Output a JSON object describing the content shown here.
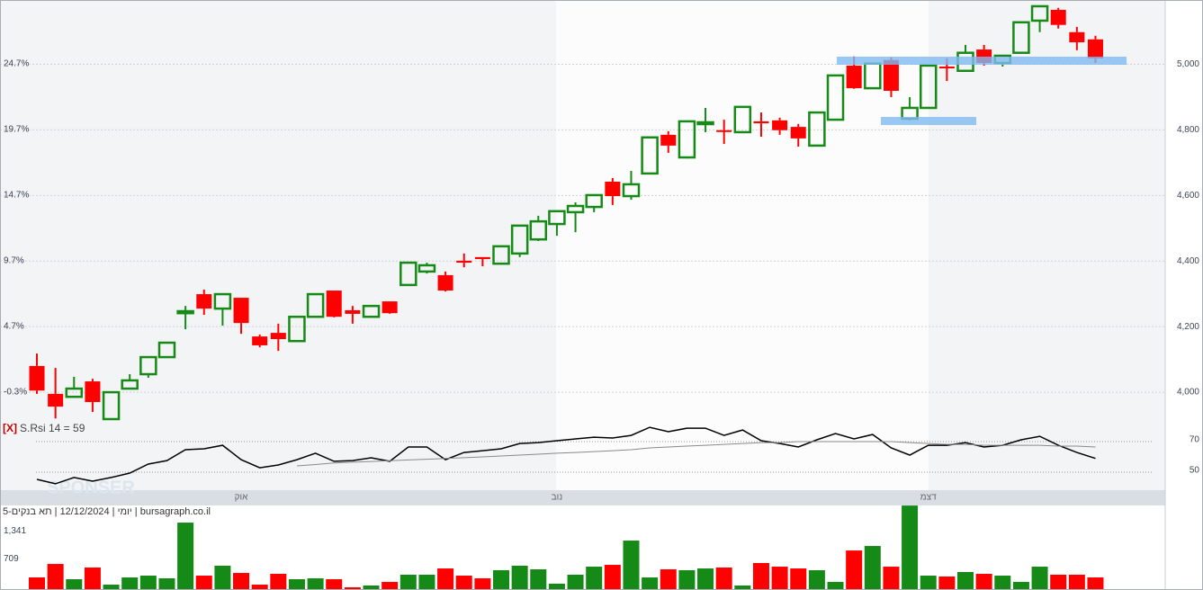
{
  "chart_data": [
    {
      "type": "candlestick",
      "categories": [
        null,
        null,
        null,
        null,
        null,
        null,
        null,
        null,
        null,
        null,
        null,
        "אוק",
        null,
        null,
        null,
        null,
        null,
        null,
        null,
        null,
        null,
        null,
        null,
        null,
        null,
        null,
        null,
        null,
        "נוב",
        null,
        null,
        null,
        null,
        null,
        null,
        null,
        null,
        null,
        null,
        null,
        null,
        null,
        null,
        null,
        null,
        null,
        null,
        null,
        "דצמ",
        null,
        null,
        null,
        null,
        null,
        null,
        null,
        null,
        null
      ],
      "open": [
        4080,
        3995,
        3986,
        4033,
        3918,
        4011,
        4055,
        4107,
        4241,
        4299,
        4255,
        4288,
        4170,
        4181,
        4156,
        4230,
        4310,
        4250,
        4230,
        4277,
        4327,
        4368,
        4357,
        4401,
        4412,
        4392,
        4423,
        4466,
        4513,
        4549,
        4565,
        4642,
        4598,
        4667,
        4785,
        4716,
        4818,
        4799,
        4793,
        4826,
        4829,
        4809,
        4752,
        4831,
        4996,
        4927,
        5013,
        4834,
        4867,
        4993,
        4980,
        5045,
        5004,
        5035,
        5133,
        5166,
        5098,
        5076
      ],
      "high": [
        4118,
        4074,
        4047,
        4041,
        4000,
        4055,
        4107,
        4151,
        4263,
        4313,
        4299,
        4288,
        4176,
        4209,
        4230,
        4299,
        4310,
        4263,
        4263,
        4277,
        4395,
        4395,
        4368,
        4423,
        4412,
        4445,
        4508,
        4538,
        4552,
        4579,
        4601,
        4653,
        4675,
        4777,
        4796,
        4826,
        4867,
        4831,
        4870,
        4853,
        4837,
        4818,
        4853,
        4966,
        5024,
        5002,
        5021,
        4900,
        4996,
        5018,
        5059,
        5059,
        5026,
        5128,
        5177,
        5172,
        5114,
        5087
      ],
      "low": [
        3995,
        3920,
        3984,
        3940,
        3918,
        4011,
        4044,
        4105,
        4192,
        4236,
        4203,
        4178,
        4137,
        4126,
        4153,
        4230,
        4228,
        4209,
        4228,
        4239,
        4324,
        4362,
        4307,
        4381,
        4384,
        4389,
        4412,
        4461,
        4477,
        4488,
        4549,
        4571,
        4587,
        4664,
        4730,
        4713,
        4793,
        4757,
        4790,
        4779,
        4785,
        4749,
        4749,
        4829,
        4925,
        4925,
        4900,
        4829,
        4864,
        4949,
        4977,
        4996,
        4993,
        5032,
        5098,
        5109,
        5043,
        5004
      ],
      "close": [
        4005,
        3956,
        4011,
        3970,
        4000,
        4036,
        4107,
        4151,
        4247,
        4255,
        4299,
        4211,
        4143,
        4162,
        4230,
        4299,
        4230,
        4239,
        4263,
        4241,
        4395,
        4387,
        4310,
        4395,
        4406,
        4445,
        4508,
        4521,
        4552,
        4568,
        4601,
        4598,
        4634,
        4777,
        4752,
        4826,
        4823,
        4796,
        4870,
        4820,
        4799,
        4774,
        4853,
        4966,
        4927,
        5002,
        4919,
        4867,
        4996,
        4988,
        5035,
        5004,
        5026,
        5128,
        5177,
        5120,
        5067,
        5018
      ],
      "up_color": "#168a16",
      "down_color": "#ff0000",
      "ylim": [
        3907,
        5196
      ],
      "yticks": [
        {
          "value": 4000,
          "label": "4,000"
        },
        {
          "value": 4200,
          "label": "4,200"
        },
        {
          "value": 4400,
          "label": "4,400"
        },
        {
          "value": 4600,
          "label": "4,600"
        },
        {
          "value": 4800,
          "label": "4,800"
        },
        {
          "value": 5000,
          "label": "5,000"
        }
      ],
      "y2lim": [
        -2.63,
        29.57
      ],
      "y2ticks": [
        {
          "value": -0.3,
          "label": "-0.3%"
        },
        {
          "value": 4.7,
          "label": "4.7%"
        },
        {
          "value": 9.7,
          "label": "9.7%"
        },
        {
          "value": 14.7,
          "label": "14.7%"
        },
        {
          "value": 19.7,
          "label": "19.7%"
        },
        {
          "value": 24.7,
          "label": "24.7%"
        }
      ],
      "grid": true
    },
    {
      "type": "line",
      "title": "S.Rsi 14 = 59",
      "close_button": "[X]",
      "series": [
        {
          "color": "#000000",
          "values": [
            45.3,
            42.4,
            46.5,
            44.1,
            46.5,
            49.4,
            55.3,
            57.6,
            64.7,
            65.3,
            67.6,
            58.2,
            52.9,
            54.7,
            58.2,
            62.4,
            57.1,
            57.6,
            59.4,
            57.1,
            66.5,
            66.5,
            58.2,
            62.9,
            64.1,
            65.3,
            68.8,
            69.4,
            70.6,
            71.8,
            72.9,
            72.4,
            74.1,
            79.4,
            76.5,
            78.8,
            78.8,
            74.1,
            77.6,
            70.6,
            68.8,
            66.5,
            71.2,
            75.3,
            71.8,
            74.7,
            65.9,
            61.2,
            67.6,
            67.6,
            69.4,
            66.5,
            67.6,
            71.2,
            73.5,
            67.6,
            62.9,
            59
          ]
        },
        {
          "color": "#8a8a8a",
          "values": [
            null,
            null,
            null,
            null,
            null,
            null,
            null,
            null,
            null,
            null,
            null,
            null,
            null,
            null,
            54.1,
            55,
            56,
            56.5,
            57,
            57.5,
            58,
            58.5,
            59,
            59.5,
            60,
            60.6,
            61.2,
            61.8,
            62.4,
            62.9,
            63.5,
            64.1,
            64.7,
            65.9,
            66.5,
            67.1,
            67.6,
            68.2,
            68.8,
            69.4,
            69.4,
            70,
            70,
            70,
            70,
            70,
            70,
            69.4,
            68.8,
            68.2,
            68.2,
            67.6,
            67.6,
            67.6,
            67.6,
            67.1,
            67.1,
            66.5
          ]
        }
      ],
      "ylim": [
        38.2,
        82.4
      ],
      "yticks": [
        50,
        70
      ]
    },
    {
      "type": "bar",
      "values": [
        326,
        632,
        286,
        551,
        163,
        326,
        367,
        306,
        1571,
        367,
        592,
        428,
        163,
        408,
        286,
        306,
        286,
        102,
        143,
        224,
        388,
        388,
        530,
        367,
        306,
        490,
        592,
        510,
        184,
        388,
        571,
        612,
        1163,
        326,
        510,
        490,
        530,
        551,
        143,
        653,
        571,
        530,
        490,
        224,
        938,
        1040,
        571,
        1958,
        367,
        347,
        449,
        408,
        367,
        224,
        571,
        388,
        388,
        326
      ],
      "ylim": [
        0,
        1960
      ],
      "yticks": [
        709,
        {
          "value": 1341,
          "label": "1,341"
        }
      ]
    }
  ],
  "info": "יומי | 12/12/2024 | תא בנקים-5 | bursagraph.co.il",
  "watermark": "SPONSER"
}
